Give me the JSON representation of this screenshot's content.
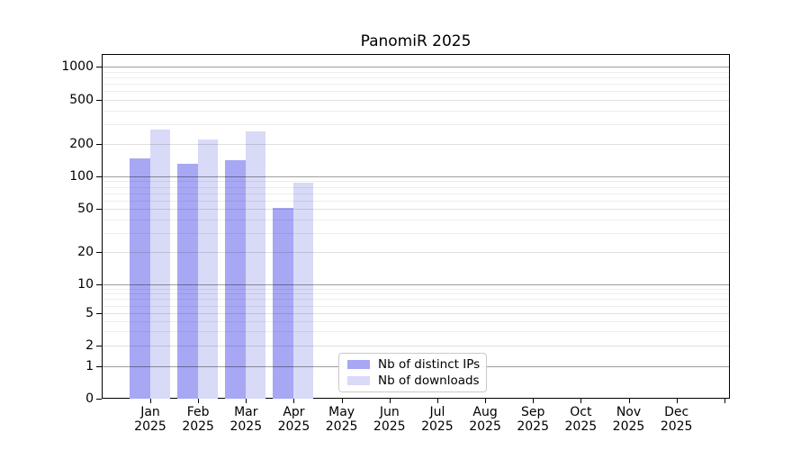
{
  "chart_data": {
    "type": "bar",
    "title": "PanomiR 2025",
    "yscale": "symlog",
    "grid": true,
    "categories": [
      "Jan",
      "Feb",
      "Mar",
      "Apr",
      "May",
      "Jun",
      "Jul",
      "Aug",
      "Sep",
      "Oct",
      "Nov",
      "Dec"
    ],
    "x_sublabel": "2025",
    "series": [
      {
        "name": "Nb of distinct IPs",
        "color": "#a7a7f4",
        "values": [
          147,
          131,
          142,
          51,
          null,
          null,
          null,
          null,
          null,
          null,
          null,
          null
        ]
      },
      {
        "name": "Nb of downloads",
        "color": "#d9d9f8",
        "values": [
          270,
          220,
          260,
          87,
          null,
          null,
          null,
          null,
          null,
          null,
          null,
          null
        ]
      }
    ],
    "y_ticks": [
      0,
      1,
      2,
      5,
      10,
      20,
      50,
      100,
      200,
      500,
      1000
    ],
    "y_major_decades": [
      1,
      10,
      100,
      1000
    ],
    "ylim": [
      0,
      1400
    ],
    "legend_position": "lower center"
  }
}
